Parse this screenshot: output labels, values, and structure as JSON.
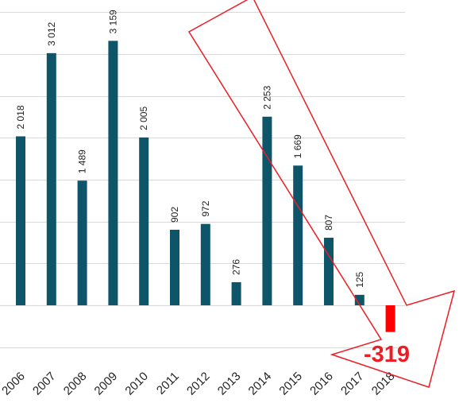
{
  "chart_data": {
    "type": "bar",
    "categories": [
      "2006",
      "2007",
      "2008",
      "2009",
      "2010",
      "2011",
      "2012",
      "2013",
      "2014",
      "2015",
      "2016",
      "2017",
      "2018"
    ],
    "values": [
      2018,
      3012,
      1489,
      3159,
      2005,
      902,
      972,
      276,
      2253,
      1669,
      807,
      125,
      -319
    ],
    "value_labels": [
      "2 018",
      "3 012",
      "1 489",
      "3 159",
      "2 005",
      "902",
      "972",
      "276",
      "2 253",
      "1 669",
      "807",
      "125",
      ""
    ],
    "highlight_label": "-319",
    "ylim": [
      -850,
      3500
    ],
    "grid": true,
    "colors": {
      "bar": "#0e5569",
      "negative_bar": "#ff0000",
      "grid": "#d9d9d9",
      "callout": "#ee1c25"
    },
    "annotation": "red outlined trend arrow pointing down toward the 2018 bar"
  }
}
